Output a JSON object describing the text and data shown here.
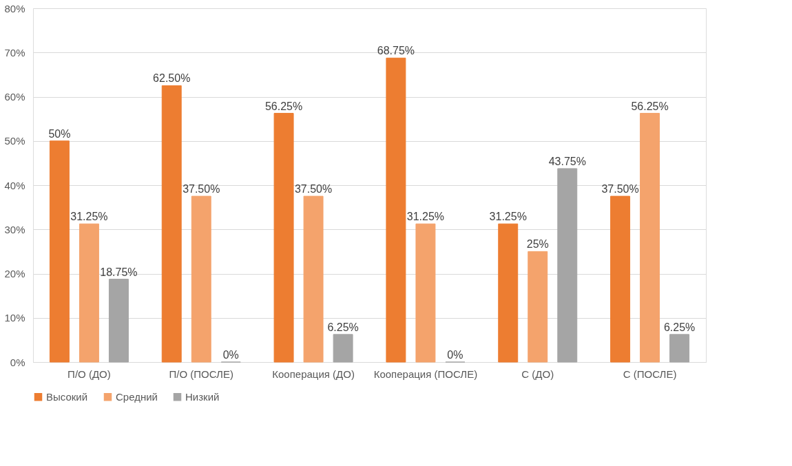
{
  "chart_data": {
    "type": "bar",
    "categories": [
      "П/О (ДО)",
      "П/О (ПОСЛЕ)",
      "Кооперация (ДО)",
      "Кооперация (ПОСЛЕ)",
      "С (ДО)",
      "С (ПОСЛЕ)"
    ],
    "series": [
      {
        "name": "Высокий",
        "color": "#ed7d31",
        "values": [
          50,
          62.5,
          56.25,
          68.75,
          31.25,
          37.5
        ],
        "value_labels": [
          "50%",
          "62.50%",
          "56.25%",
          "68.75%",
          "31.25%",
          "37.50%"
        ]
      },
      {
        "name": "Средний",
        "color": "#f4a36c",
        "values": [
          31.25,
          37.5,
          37.5,
          31.25,
          25,
          56.25
        ],
        "value_labels": [
          "31.25%",
          "37.50%",
          "37.50%",
          "31.25%",
          "25%",
          "56.25%"
        ]
      },
      {
        "name": "Низкий",
        "color": "#a5a5a5",
        "values": [
          18.75,
          0,
          6.25,
          0,
          43.75,
          6.25
        ],
        "value_labels": [
          "18.75%",
          "0%",
          "6.25%",
          "0%",
          "43.75%",
          "6.25%"
        ]
      }
    ],
    "ylim": [
      0,
      80
    ],
    "yticks": [
      {
        "value": 0,
        "label": "0%"
      },
      {
        "value": 10,
        "label": "10%"
      },
      {
        "value": 20,
        "label": "20%"
      },
      {
        "value": 30,
        "label": "30%"
      },
      {
        "value": 40,
        "label": "40%"
      },
      {
        "value": 50,
        "label": "50%"
      },
      {
        "value": 60,
        "label": "60%"
      },
      {
        "value": 70,
        "label": "70%"
      },
      {
        "value": 80,
        "label": "80%"
      }
    ],
    "grid": "y",
    "legend": "bottom"
  }
}
